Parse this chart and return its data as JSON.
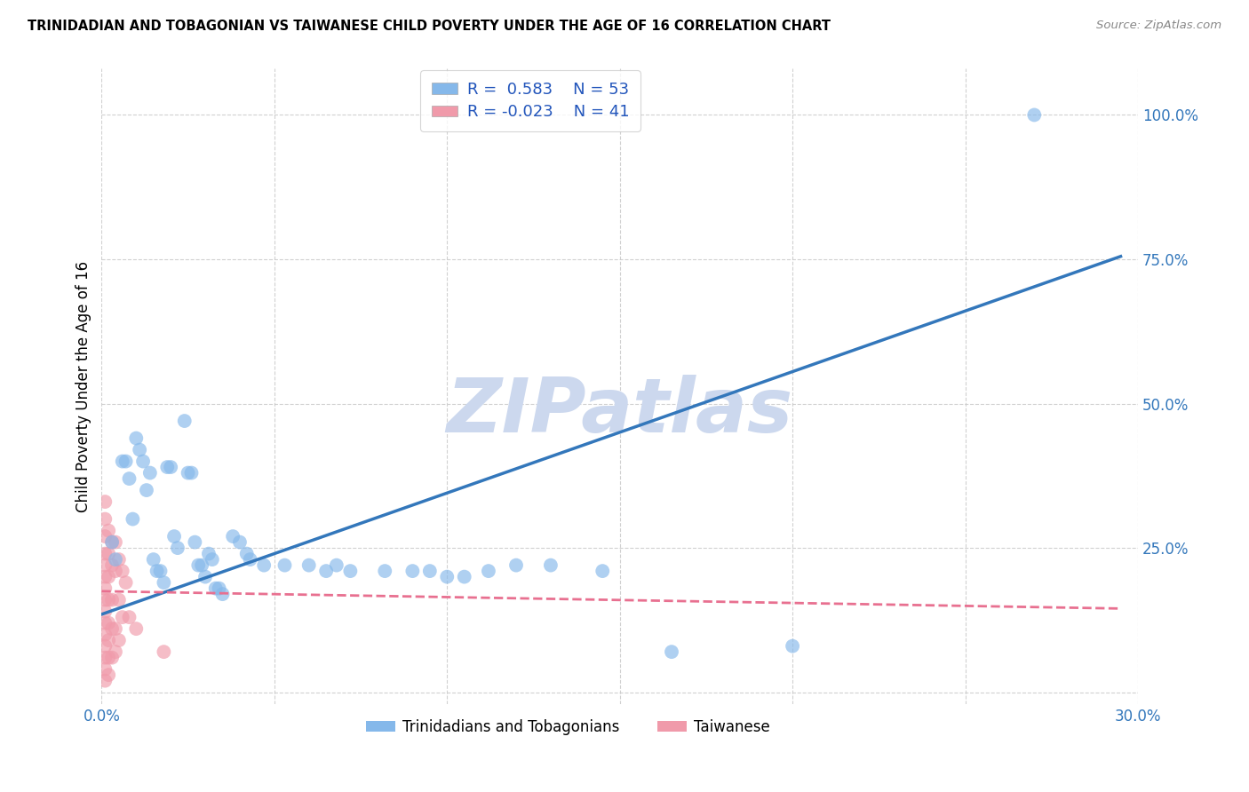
{
  "title": "TRINIDADIAN AND TOBAGONIAN VS TAIWANESE CHILD POVERTY UNDER THE AGE OF 16 CORRELATION CHART",
  "source": "Source: ZipAtlas.com",
  "ylabel": "Child Poverty Under the Age of 16",
  "xlim": [
    0.0,
    0.3
  ],
  "ylim": [
    -0.02,
    1.08
  ],
  "xticks": [
    0.0,
    0.05,
    0.1,
    0.15,
    0.2,
    0.25,
    0.3
  ],
  "xticklabels": [
    "0.0%",
    "",
    "",
    "",
    "",
    "",
    "30.0%"
  ],
  "yticks": [
    0.0,
    0.25,
    0.5,
    0.75,
    1.0
  ],
  "yticklabels": [
    "",
    "25.0%",
    "50.0%",
    "75.0%",
    "100.0%"
  ],
  "grid_color": "#cccccc",
  "watermark_text": "ZIPatlas",
  "watermark_color": "#ccd8ee",
  "blue_color": "#85b8ea",
  "pink_color": "#f09aaa",
  "blue_line_color": "#3377bb",
  "pink_line_color": "#e87090",
  "legend_label1": "Trinidadians and Tobagonians",
  "legend_label2": "Taiwanese",
  "blue_dots": [
    [
      0.003,
      0.26
    ],
    [
      0.004,
      0.23
    ],
    [
      0.006,
      0.4
    ],
    [
      0.007,
      0.4
    ],
    [
      0.008,
      0.37
    ],
    [
      0.009,
      0.3
    ],
    [
      0.01,
      0.44
    ],
    [
      0.011,
      0.42
    ],
    [
      0.012,
      0.4
    ],
    [
      0.013,
      0.35
    ],
    [
      0.014,
      0.38
    ],
    [
      0.015,
      0.23
    ],
    [
      0.016,
      0.21
    ],
    [
      0.017,
      0.21
    ],
    [
      0.018,
      0.19
    ],
    [
      0.019,
      0.39
    ],
    [
      0.02,
      0.39
    ],
    [
      0.021,
      0.27
    ],
    [
      0.022,
      0.25
    ],
    [
      0.024,
      0.47
    ],
    [
      0.025,
      0.38
    ],
    [
      0.026,
      0.38
    ],
    [
      0.027,
      0.26
    ],
    [
      0.028,
      0.22
    ],
    [
      0.029,
      0.22
    ],
    [
      0.03,
      0.2
    ],
    [
      0.031,
      0.24
    ],
    [
      0.032,
      0.23
    ],
    [
      0.033,
      0.18
    ],
    [
      0.034,
      0.18
    ],
    [
      0.035,
      0.17
    ],
    [
      0.038,
      0.27
    ],
    [
      0.04,
      0.26
    ],
    [
      0.042,
      0.24
    ],
    [
      0.043,
      0.23
    ],
    [
      0.047,
      0.22
    ],
    [
      0.053,
      0.22
    ],
    [
      0.06,
      0.22
    ],
    [
      0.065,
      0.21
    ],
    [
      0.068,
      0.22
    ],
    [
      0.072,
      0.21
    ],
    [
      0.082,
      0.21
    ],
    [
      0.09,
      0.21
    ],
    [
      0.095,
      0.21
    ],
    [
      0.1,
      0.2
    ],
    [
      0.105,
      0.2
    ],
    [
      0.112,
      0.21
    ],
    [
      0.12,
      0.22
    ],
    [
      0.13,
      0.22
    ],
    [
      0.145,
      0.21
    ],
    [
      0.165,
      0.07
    ],
    [
      0.2,
      0.08
    ],
    [
      0.27,
      1.0
    ]
  ],
  "pink_dots": [
    [
      0.001,
      0.33
    ],
    [
      0.001,
      0.3
    ],
    [
      0.001,
      0.27
    ],
    [
      0.001,
      0.24
    ],
    [
      0.001,
      0.22
    ],
    [
      0.001,
      0.2
    ],
    [
      0.001,
      0.18
    ],
    [
      0.001,
      0.16
    ],
    [
      0.001,
      0.14
    ],
    [
      0.001,
      0.12
    ],
    [
      0.001,
      0.1
    ],
    [
      0.001,
      0.08
    ],
    [
      0.001,
      0.06
    ],
    [
      0.001,
      0.04
    ],
    [
      0.001,
      0.02
    ],
    [
      0.002,
      0.28
    ],
    [
      0.002,
      0.24
    ],
    [
      0.002,
      0.2
    ],
    [
      0.002,
      0.16
    ],
    [
      0.002,
      0.12
    ],
    [
      0.002,
      0.09
    ],
    [
      0.002,
      0.06
    ],
    [
      0.002,
      0.03
    ],
    [
      0.003,
      0.26
    ],
    [
      0.003,
      0.22
    ],
    [
      0.003,
      0.16
    ],
    [
      0.003,
      0.11
    ],
    [
      0.003,
      0.06
    ],
    [
      0.004,
      0.26
    ],
    [
      0.004,
      0.21
    ],
    [
      0.004,
      0.11
    ],
    [
      0.004,
      0.07
    ],
    [
      0.005,
      0.23
    ],
    [
      0.005,
      0.16
    ],
    [
      0.005,
      0.09
    ],
    [
      0.006,
      0.21
    ],
    [
      0.006,
      0.13
    ],
    [
      0.007,
      0.19
    ],
    [
      0.008,
      0.13
    ],
    [
      0.01,
      0.11
    ],
    [
      0.018,
      0.07
    ]
  ],
  "blue_line_x": [
    0.0,
    0.295
  ],
  "blue_line_y": [
    0.135,
    0.755
  ],
  "pink_line_x": [
    0.0,
    0.295
  ],
  "pink_line_y": [
    0.175,
    0.145
  ]
}
